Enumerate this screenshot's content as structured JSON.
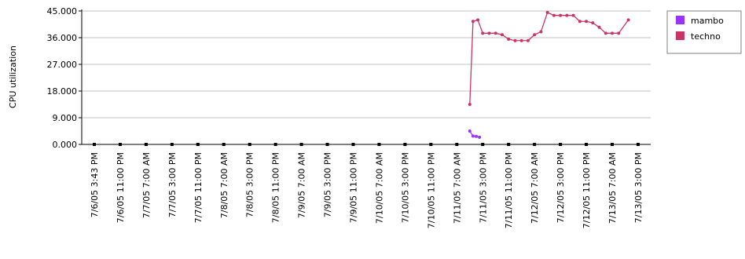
{
  "chart_data": {
    "type": "line",
    "title": "",
    "xlabel": "",
    "ylabel": "CPU utilization",
    "ylim": [
      0,
      45
    ],
    "y_ticks": [
      "0.000",
      "9.000",
      "18.000",
      "27.000",
      "36.000",
      "45.000"
    ],
    "grid": "horizontal",
    "legend_position": "top-right",
    "x_ticks": [
      "7/6/05 3:43 PM",
      "7/6/05 11:00 PM",
      "7/7/05 7:00 AM",
      "7/7/05 3:00 PM",
      "7/7/05 11:00 PM",
      "7/8/05 7:00 AM",
      "7/8/05 3:00 PM",
      "7/8/05 11:00 PM",
      "7/9/05 7:00 AM",
      "7/9/05 3:00 PM",
      "7/9/05 11:00 PM",
      "7/10/05 7:00 AM",
      "7/10/05 3:00 PM",
      "7/10/05 11:00 PM",
      "7/11/05 7:00 AM",
      "7/11/05 3:00 PM",
      "7/11/05 11:00 PM",
      "7/12/05 7:00 AM",
      "7/12/05 3:00 PM",
      "7/12/05 11:00 PM",
      "7/13/05 7:00 AM",
      "7/13/05 3:00 PM"
    ],
    "series": [
      {
        "name": "mambo",
        "color": "#9933ff",
        "points": [
          {
            "x": "7/11/05 11:00 AM",
            "y": 4.5
          },
          {
            "x": "7/11/05 12:00 PM",
            "y": 2.8
          },
          {
            "x": "7/11/05 1:00 PM",
            "y": 2.7
          },
          {
            "x": "7/11/05 2:00 PM",
            "y": 2.4
          }
        ]
      },
      {
        "name": "techno",
        "color": "#cc3366",
        "points": [
          {
            "x": "7/11/05 11:00 AM",
            "y": 13.5
          },
          {
            "x": "7/11/05 12:00 PM",
            "y": 41.5
          },
          {
            "x": "7/11/05 1:30 PM",
            "y": 42.0
          },
          {
            "x": "7/11/05 3:00 PM",
            "y": 37.5
          },
          {
            "x": "7/11/05 5:00 PM",
            "y": 37.5
          },
          {
            "x": "7/11/05 7:00 PM",
            "y": 37.5
          },
          {
            "x": "7/11/05 9:00 PM",
            "y": 37.0
          },
          {
            "x": "7/11/05 11:00 PM",
            "y": 35.5
          },
          {
            "x": "7/12/05 1:00 AM",
            "y": 35.0
          },
          {
            "x": "7/12/05 3:00 AM",
            "y": 35.0
          },
          {
            "x": "7/12/05 5:00 AM",
            "y": 35.0
          },
          {
            "x": "7/12/05 7:00 AM",
            "y": 37.0
          },
          {
            "x": "7/12/05 9:00 AM",
            "y": 38.0
          },
          {
            "x": "7/12/05 11:00 AM",
            "y": 44.5
          },
          {
            "x": "7/12/05 1:00 PM",
            "y": 43.5
          },
          {
            "x": "7/12/05 3:00 PM",
            "y": 43.5
          },
          {
            "x": "7/12/05 5:00 PM",
            "y": 43.5
          },
          {
            "x": "7/12/05 7:00 PM",
            "y": 43.5
          },
          {
            "x": "7/12/05 9:00 PM",
            "y": 41.5
          },
          {
            "x": "7/12/05 11:00 PM",
            "y": 41.5
          },
          {
            "x": "7/13/05 1:00 AM",
            "y": 41.0
          },
          {
            "x": "7/13/05 3:00 AM",
            "y": 39.5
          },
          {
            "x": "7/13/05 5:00 AM",
            "y": 37.5
          },
          {
            "x": "7/13/05 7:00 AM",
            "y": 37.5
          },
          {
            "x": "7/13/05 9:00 AM",
            "y": 37.5
          },
          {
            "x": "7/13/05 12:00 PM",
            "y": 42.0
          }
        ]
      }
    ]
  }
}
